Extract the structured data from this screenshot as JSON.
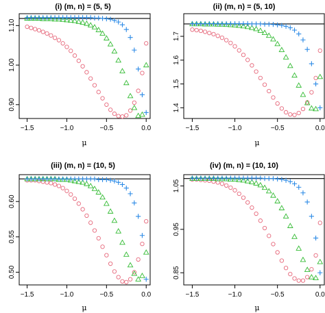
{
  "chart_data": [
    {
      "type": "scatter",
      "title": "(i) (m, n) = (5, 5)",
      "xlabel": "μ",
      "ylabel": "",
      "xlim": [
        -1.6,
        0.05
      ],
      "ylim": [
        0.865,
        1.13
      ],
      "hline": 1.118,
      "xticks": [
        {
          "v": -1.5,
          "label": "−1.5"
        },
        {
          "v": -1.0,
          "label": "−1.0"
        },
        {
          "v": -0.5,
          "label": "−0.5"
        },
        {
          "v": 0.0,
          "label": "0.0"
        }
      ],
      "yticks": [
        {
          "v": 0.9,
          "label": "0.90"
        },
        {
          "v": 1.0,
          "label": "1.00"
        },
        {
          "v": 1.1,
          "label": "1.10"
        }
      ],
      "series": [
        {
          "marker": "circle",
          "color": "#e6677a",
          "x": [
            -1.5,
            -1.45,
            -1.4,
            -1.35,
            -1.3,
            -1.25,
            -1.2,
            -1.15,
            -1.1,
            -1.05,
            -1.0,
            -0.95,
            -0.9,
            -0.85,
            -0.8,
            -0.75,
            -0.7,
            -0.65,
            -0.6,
            -0.55,
            -0.5,
            -0.45,
            -0.4,
            -0.35,
            -0.3,
            -0.25,
            -0.2,
            -0.15,
            -0.1,
            -0.05,
            0.0
          ],
          "y": [
            1.097,
            1.094,
            1.091,
            1.088,
            1.084,
            1.08,
            1.075,
            1.069,
            1.063,
            1.055,
            1.046,
            1.036,
            1.024,
            1.011,
            0.997,
            0.982,
            0.966,
            0.949,
            0.932,
            0.916,
            0.9,
            0.887,
            0.877,
            0.871,
            0.87,
            0.873,
            0.885,
            0.905,
            0.935,
            0.98,
            1.055
          ]
        },
        {
          "marker": "triangle",
          "color": "#33bb33",
          "x": [
            -1.5,
            -1.45,
            -1.4,
            -1.35,
            -1.3,
            -1.25,
            -1.2,
            -1.15,
            -1.1,
            -1.05,
            -1.0,
            -0.95,
            -0.9,
            -0.85,
            -0.8,
            -0.75,
            -0.7,
            -0.65,
            -0.6,
            -0.55,
            -0.5,
            -0.45,
            -0.4,
            -0.35,
            -0.3,
            -0.25,
            -0.2,
            -0.15,
            -0.1,
            -0.05,
            0.0
          ],
          "y": [
            1.118,
            1.118,
            1.118,
            1.118,
            1.117,
            1.117,
            1.117,
            1.116,
            1.116,
            1.115,
            1.114,
            1.113,
            1.112,
            1.11,
            1.108,
            1.105,
            1.101,
            1.096,
            1.089,
            1.08,
            1.068,
            1.053,
            1.035,
            1.012,
            0.985,
            0.955,
            0.922,
            0.892,
            0.872,
            0.875,
            1.0
          ]
        },
        {
          "marker": "plus",
          "color": "#2b8ae6",
          "x": [
            -1.5,
            -1.45,
            -1.4,
            -1.35,
            -1.3,
            -1.25,
            -1.2,
            -1.15,
            -1.1,
            -1.05,
            -1.0,
            -0.95,
            -0.9,
            -0.85,
            -0.8,
            -0.75,
            -0.7,
            -0.65,
            -0.6,
            -0.55,
            -0.5,
            -0.45,
            -0.4,
            -0.35,
            -0.3,
            -0.25,
            -0.2,
            -0.15,
            -0.1,
            -0.05,
            0.0
          ],
          "y": [
            1.12,
            1.12,
            1.12,
            1.12,
            1.12,
            1.12,
            1.12,
            1.12,
            1.12,
            1.12,
            1.12,
            1.12,
            1.12,
            1.12,
            1.12,
            1.12,
            1.12,
            1.119,
            1.119,
            1.118,
            1.117,
            1.116,
            1.113,
            1.109,
            1.102,
            1.09,
            1.07,
            1.038,
            0.99,
            0.925,
            0.88
          ]
        }
      ]
    },
    {
      "type": "scatter",
      "title": "(ii) (m, n) = (5, 10)",
      "xlabel": "μ",
      "ylabel": "",
      "xlim": [
        -1.6,
        0.05
      ],
      "ylim": [
        1.355,
        1.795
      ],
      "hline": 1.752,
      "xticks": [
        {
          "v": -1.5,
          "label": "−1.5"
        },
        {
          "v": -1.0,
          "label": "−1.0"
        },
        {
          "v": -0.5,
          "label": "−0.5"
        },
        {
          "v": 0.0,
          "label": "0.0"
        }
      ],
      "yticks": [
        {
          "v": 1.4,
          "label": "1.4"
        },
        {
          "v": 1.5,
          "label": "1.5"
        },
        {
          "v": 1.6,
          "label": "1.6"
        },
        {
          "v": 1.7,
          "label": "1.7"
        }
      ],
      "series": [
        {
          "marker": "circle",
          "color": "#e6677a",
          "x": [
            -1.5,
            -1.45,
            -1.4,
            -1.35,
            -1.3,
            -1.25,
            -1.2,
            -1.15,
            -1.1,
            -1.05,
            -1.0,
            -0.95,
            -0.9,
            -0.85,
            -0.8,
            -0.75,
            -0.7,
            -0.65,
            -0.6,
            -0.55,
            -0.5,
            -0.45,
            -0.4,
            -0.35,
            -0.3,
            -0.25,
            -0.2,
            -0.15,
            -0.1,
            -0.05,
            0.0
          ],
          "y": [
            1.728,
            1.726,
            1.723,
            1.719,
            1.714,
            1.709,
            1.702,
            1.694,
            1.684,
            1.672,
            1.658,
            1.641,
            1.622,
            1.601,
            1.578,
            1.552,
            1.525,
            1.497,
            1.47,
            1.443,
            1.418,
            1.397,
            1.381,
            1.372,
            1.37,
            1.378,
            1.395,
            1.423,
            1.465,
            1.525,
            1.64
          ]
        },
        {
          "marker": "triangle",
          "color": "#33bb33",
          "x": [
            -1.5,
            -1.45,
            -1.4,
            -1.35,
            -1.3,
            -1.25,
            -1.2,
            -1.15,
            -1.1,
            -1.05,
            -1.0,
            -0.95,
            -0.9,
            -0.85,
            -0.8,
            -0.75,
            -0.7,
            -0.65,
            -0.6,
            -0.55,
            -0.5,
            -0.45,
            -0.4,
            -0.35,
            -0.3,
            -0.25,
            -0.2,
            -0.15,
            -0.1,
            -0.05,
            0.0
          ],
          "y": [
            1.752,
            1.752,
            1.752,
            1.751,
            1.751,
            1.751,
            1.75,
            1.75,
            1.749,
            1.748,
            1.747,
            1.745,
            1.743,
            1.74,
            1.736,
            1.731,
            1.724,
            1.715,
            1.703,
            1.688,
            1.668,
            1.643,
            1.612,
            1.576,
            1.536,
            1.494,
            1.455,
            1.42,
            1.398,
            1.395,
            1.53
          ]
        },
        {
          "marker": "plus",
          "color": "#2b8ae6",
          "x": [
            -1.5,
            -1.45,
            -1.4,
            -1.35,
            -1.3,
            -1.25,
            -1.2,
            -1.15,
            -1.1,
            -1.05,
            -1.0,
            -0.95,
            -0.9,
            -0.85,
            -0.8,
            -0.75,
            -0.7,
            -0.65,
            -0.6,
            -0.55,
            -0.5,
            -0.45,
            -0.4,
            -0.35,
            -0.3,
            -0.25,
            -0.2,
            -0.15,
            -0.1,
            -0.05,
            0.0
          ],
          "y": [
            1.753,
            1.753,
            1.753,
            1.753,
            1.753,
            1.753,
            1.753,
            1.753,
            1.753,
            1.753,
            1.753,
            1.753,
            1.753,
            1.753,
            1.752,
            1.752,
            1.752,
            1.751,
            1.751,
            1.75,
            1.748,
            1.746,
            1.742,
            1.736,
            1.726,
            1.71,
            1.685,
            1.645,
            1.585,
            1.5,
            1.4
          ]
        }
      ]
    },
    {
      "type": "scatter",
      "title": "(iii) (m, n) = (10, 5)",
      "xlabel": "μ",
      "ylabel": "",
      "xlim": [
        -1.6,
        0.05
      ],
      "ylim": [
        0.482,
        0.638
      ],
      "hline": 0.632,
      "xticks": [
        {
          "v": -1.5,
          "label": "−1.5"
        },
        {
          "v": -1.0,
          "label": "−1.0"
        },
        {
          "v": -0.5,
          "label": "−0.5"
        },
        {
          "v": 0.0,
          "label": "0.0"
        }
      ],
      "yticks": [
        {
          "v": 0.5,
          "label": "0.50"
        },
        {
          "v": 0.55,
          "label": "0.55"
        },
        {
          "v": 0.6,
          "label": "0.60"
        }
      ],
      "series": [
        {
          "marker": "circle",
          "color": "#e6677a",
          "x": [
            -1.5,
            -1.45,
            -1.4,
            -1.35,
            -1.3,
            -1.25,
            -1.2,
            -1.15,
            -1.1,
            -1.05,
            -1.0,
            -0.95,
            -0.9,
            -0.85,
            -0.8,
            -0.75,
            -0.7,
            -0.65,
            -0.6,
            -0.55,
            -0.5,
            -0.45,
            -0.4,
            -0.35,
            -0.3,
            -0.25,
            -0.2,
            -0.15,
            -0.1,
            -0.05,
            0.0
          ],
          "y": [
            0.63,
            0.63,
            0.63,
            0.629,
            0.628,
            0.627,
            0.626,
            0.624,
            0.622,
            0.619,
            0.615,
            0.61,
            0.604,
            0.597,
            0.589,
            0.58,
            0.57,
            0.559,
            0.548,
            0.536,
            0.524,
            0.512,
            0.501,
            0.493,
            0.487,
            0.486,
            0.49,
            0.5,
            0.518,
            0.54,
            0.572
          ]
        },
        {
          "marker": "triangle",
          "color": "#33bb33",
          "x": [
            -1.5,
            -1.45,
            -1.4,
            -1.35,
            -1.3,
            -1.25,
            -1.2,
            -1.15,
            -1.1,
            -1.05,
            -1.0,
            -0.95,
            -0.9,
            -0.85,
            -0.8,
            -0.75,
            -0.7,
            -0.65,
            -0.6,
            -0.55,
            -0.5,
            -0.45,
            -0.4,
            -0.35,
            -0.3,
            -0.25,
            -0.2,
            -0.15,
            -0.1,
            -0.05,
            0.0
          ],
          "y": [
            0.632,
            0.632,
            0.632,
            0.632,
            0.632,
            0.632,
            0.632,
            0.632,
            0.631,
            0.631,
            0.631,
            0.63,
            0.629,
            0.628,
            0.627,
            0.625,
            0.622,
            0.618,
            0.613,
            0.606,
            0.597,
            0.586,
            0.573,
            0.558,
            0.542,
            0.525,
            0.51,
            0.498,
            0.49,
            0.495,
            0.528
          ]
        },
        {
          "marker": "plus",
          "color": "#2b8ae6",
          "x": [
            -1.5,
            -1.45,
            -1.4,
            -1.35,
            -1.3,
            -1.25,
            -1.2,
            -1.15,
            -1.1,
            -1.05,
            -1.0,
            -0.95,
            -0.9,
            -0.85,
            -0.8,
            -0.75,
            -0.7,
            -0.65,
            -0.6,
            -0.55,
            -0.5,
            -0.45,
            -0.4,
            -0.35,
            -0.3,
            -0.25,
            -0.2,
            -0.15,
            -0.1,
            -0.05,
            0.0
          ],
          "y": [
            0.632,
            0.632,
            0.632,
            0.632,
            0.632,
            0.632,
            0.632,
            0.632,
            0.632,
            0.632,
            0.632,
            0.632,
            0.632,
            0.632,
            0.632,
            0.632,
            0.632,
            0.632,
            0.631,
            0.631,
            0.631,
            0.63,
            0.629,
            0.627,
            0.624,
            0.619,
            0.611,
            0.598,
            0.579,
            0.552,
            0.49
          ]
        }
      ]
    },
    {
      "type": "scatter",
      "title": "(iv) (m, n) = (10, 10)",
      "xlabel": "μ",
      "ylabel": "",
      "xlim": [
        -1.6,
        0.05
      ],
      "ylim": [
        0.822,
        1.076
      ],
      "hline": 1.067,
      "xticks": [
        {
          "v": -1.5,
          "label": "−1.5"
        },
        {
          "v": -1.0,
          "label": "−1.0"
        },
        {
          "v": -0.5,
          "label": "−0.5"
        },
        {
          "v": 0.0,
          "label": "0.0"
        }
      ],
      "yticks": [
        {
          "v": 0.85,
          "label": "0.85"
        },
        {
          "v": 0.95,
          "label": "0.95"
        },
        {
          "v": 1.05,
          "label": "1.05"
        }
      ],
      "series": [
        {
          "marker": "circle",
          "color": "#e6677a",
          "x": [
            -1.5,
            -1.45,
            -1.4,
            -1.35,
            -1.3,
            -1.25,
            -1.2,
            -1.15,
            -1.1,
            -1.05,
            -1.0,
            -0.95,
            -0.9,
            -0.85,
            -0.8,
            -0.75,
            -0.7,
            -0.65,
            -0.6,
            -0.55,
            -0.5,
            -0.45,
            -0.4,
            -0.35,
            -0.3,
            -0.25,
            -0.2,
            -0.15,
            -0.1,
            -0.05,
            0.0
          ],
          "y": [
            1.065,
            1.065,
            1.064,
            1.063,
            1.062,
            1.06,
            1.058,
            1.055,
            1.051,
            1.046,
            1.04,
            1.032,
            1.023,
            1.012,
            1.0,
            0.986,
            0.97,
            0.953,
            0.935,
            0.916,
            0.897,
            0.878,
            0.861,
            0.847,
            0.837,
            0.832,
            0.832,
            0.84,
            0.858,
            0.89,
            0.965
          ]
        },
        {
          "marker": "triangle",
          "color": "#33bb33",
          "x": [
            -1.5,
            -1.45,
            -1.4,
            -1.35,
            -1.3,
            -1.25,
            -1.2,
            -1.15,
            -1.1,
            -1.05,
            -1.0,
            -0.95,
            -0.9,
            -0.85,
            -0.8,
            -0.75,
            -0.7,
            -0.65,
            -0.6,
            -0.55,
            -0.5,
            -0.45,
            -0.4,
            -0.35,
            -0.3,
            -0.25,
            -0.2,
            -0.15,
            -0.1,
            -0.05,
            0.0
          ],
          "y": [
            1.067,
            1.067,
            1.067,
            1.067,
            1.067,
            1.067,
            1.066,
            1.066,
            1.066,
            1.065,
            1.065,
            1.064,
            1.063,
            1.061,
            1.059,
            1.056,
            1.052,
            1.046,
            1.038,
            1.028,
            1.015,
            0.999,
            0.98,
            0.958,
            0.933,
            0.906,
            0.88,
            0.857,
            0.84,
            0.838,
            0.875
          ]
        },
        {
          "marker": "plus",
          "color": "#2b8ae6",
          "x": [
            -1.5,
            -1.45,
            -1.4,
            -1.35,
            -1.3,
            -1.25,
            -1.2,
            -1.15,
            -1.1,
            -1.05,
            -1.0,
            -0.95,
            -0.9,
            -0.85,
            -0.8,
            -0.75,
            -0.7,
            -0.65,
            -0.6,
            -0.55,
            -0.5,
            -0.45,
            -0.4,
            -0.35,
            -0.3,
            -0.25,
            -0.2,
            -0.15,
            -0.1,
            -0.05,
            0.0
          ],
          "y": [
            1.068,
            1.068,
            1.068,
            1.068,
            1.068,
            1.068,
            1.068,
            1.068,
            1.068,
            1.068,
            1.068,
            1.068,
            1.068,
            1.068,
            1.068,
            1.068,
            1.068,
            1.067,
            1.067,
            1.067,
            1.066,
            1.065,
            1.063,
            1.06,
            1.055,
            1.047,
            1.034,
            1.013,
            0.98,
            0.93,
            0.85
          ]
        }
      ]
    }
  ]
}
